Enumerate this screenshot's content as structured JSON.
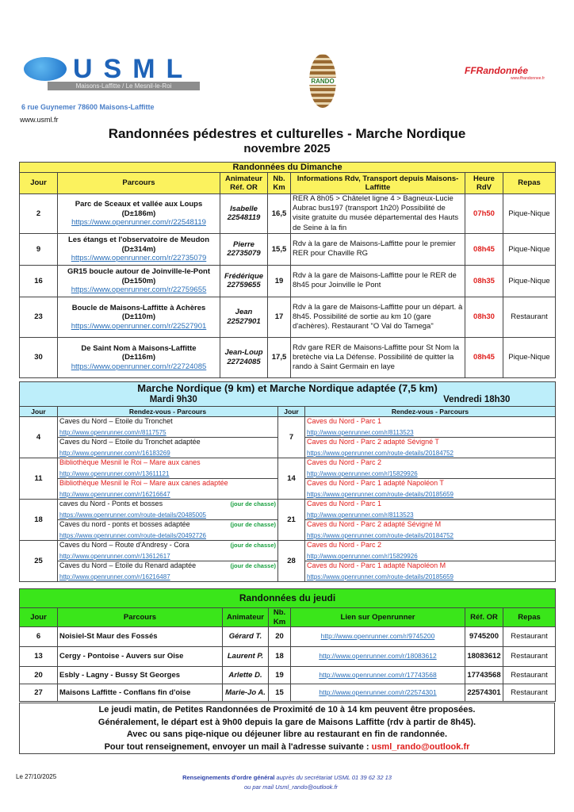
{
  "header": {
    "usml_logo": "USML",
    "usml_subtitle": "Maisons-Laffitte / Le Mesnil-le-Roi",
    "rando_logo": "RANDO",
    "ffr_logo": "FFRandonnée",
    "ffr_url": "www.ffrandonnee.fr",
    "address": "6 rue Guynemer 78600 Maisons-Laffitte",
    "website": "www.usml.fr",
    "title": "Randonnées pédestres et culturelles - Marche Nordique",
    "subtitle": "novembre 2025"
  },
  "colors": {
    "sunday": "#fbf25e",
    "nordic": "#bdeefa",
    "thursday": "#3ae61a",
    "accent_red": "#e0201e",
    "link": "#2a6fb8"
  },
  "sunday": {
    "title": "Randonnées du Dimanche",
    "columns": [
      "Jour",
      "Parcours",
      "Animateur Réf. OR",
      "Nb. Km",
      "Informations Rdv, Transport depuis Maisons-Laffitte",
      "Heure RdV",
      "Repas"
    ],
    "rows": [
      {
        "jour": "2",
        "name": "Parc de Sceaux et vallée aux Loups",
        "denivele": "(D±186m)",
        "link": "https://www.openrunner.com/r/22548119",
        "animateur": "Isabelle",
        "ref": "22548119",
        "km": "16,5",
        "info": "RER A 8h05 > Châtelet ligne 4 > Bagneux-Lucie Aubrac bus197 (transport 1h20) Possibilité de visite gratuite du musée départemental des Hauts de Seine à la fin",
        "heure": "07h50",
        "repas": "Pique-Nique"
      },
      {
        "jour": "9",
        "name": "Les étangs et l'observatoire de Meudon",
        "denivele": "(D±314m)",
        "link": "https://www.openrunner.com/r/22735079",
        "animateur": "Pierre",
        "ref": "22735079",
        "km": "15,5",
        "info": "Rdv à la gare de Maisons-Laffitte pour le premier RER pour Chaville RG",
        "heure": "08h45",
        "repas": "Pique-Nique"
      },
      {
        "jour": "16",
        "name": "GR15 boucle autour de Joinville-le-Pont",
        "denivele": "(D±150m)",
        "link": "https://www.openrunner.com/r/22759655",
        "animateur": "Frédérique",
        "ref": "22759655",
        "km": "19",
        "info": "Rdv à la gare de Maisons-Laffitte pour le RER de 8h45 pour Joinville le Pont",
        "heure": "08h35",
        "repas": "Pique-Nique"
      },
      {
        "jour": "23",
        "name": "Boucle de Maisons-Laffitte à Achères",
        "denivele": "(D±110m)",
        "link": "https://www.openrunner.com/r/22527901",
        "animateur": "Jean",
        "ref": "22527901",
        "km": "17",
        "info": "Rdv à la gare de Maisons-Laffitte pour un départ. à 8h45. Possibilité de sortie au km 10 (gare d'achères). Restaurant \"O Val do Tamega\"",
        "heure": "08h30",
        "repas": "Restaurant"
      },
      {
        "jour": "30",
        "name": "De Saint Nom à Maisons-Laffitte",
        "denivele": "(D±116m)",
        "link": "https://www.openrunner.com/r/22724085",
        "animateur": "Jean-Loup",
        "ref": "22724085",
        "km": "17,5",
        "info": "Rdv gare RER de Maisons-Laffitte pour St Nom la bretèche via La Défense. Possibilité de quitter la rando à Saint Germain en laye",
        "heure": "08h45",
        "repas": "Pique-Nique"
      }
    ]
  },
  "nordic": {
    "title": "Marche Nordique (9 km) et Marche Nordique adaptée (7,5 km)",
    "tuesday": "Mardi 9h30",
    "friday": "Vendredi 18h30",
    "col_jour": "Jour",
    "col_parcours": "Rendez-vous - Parcours",
    "rows": [
      {
        "tue_jour": "4",
        "tue": [
          {
            "name": "Caves du Nord –  Etoile du Tronchet",
            "link": "http://www.openrunner.com/r/8117575",
            "red": false
          },
          {
            "name": "Caves du Nord –  Etoile du Tronchet adaptée",
            "link": "http://www.openrunner.com/r/16183269",
            "red": false
          }
        ],
        "fri_jour": "7",
        "fri": [
          {
            "name": "Caves du Nord - Parc 1",
            "link": "http://www.openrunner.com/r/8113523"
          },
          {
            "name": "Caves du Nord - Parc 2  adapté Sévigné T",
            "link": "https://www.openrunner.com/route-details/20184752"
          }
        ]
      },
      {
        "tue_jour": "11",
        "tue": [
          {
            "name": "Bibliothèque Mesnil le Roi – Mare aux canes",
            "link": "http://www.openrunner.com/r/13611121",
            "red": true
          },
          {
            "name": "Bibliothèque Mesnil le Roi – Mare aux canes adaptée",
            "link": "http://www.openrunner.com/r/16216647",
            "red": true
          }
        ],
        "fri_jour": "14",
        "fri": [
          {
            "name": "Caves du Nord - Parc 2",
            "link": "http://www.openrunner.com/r/15829926"
          },
          {
            "name": "Caves du Nord - Parc 1  adapté Napoléon T",
            "link": "https://www.openrunner.com/route-details/20185659"
          }
        ]
      },
      {
        "tue_jour": "18",
        "tue": [
          {
            "name": "caves du Nord - Ponts et bosses",
            "note": "(jour de chasse)",
            "link": "https://www.openrunner.com/route-details/20485005",
            "red": false
          },
          {
            "name": "Caves du nord - ponts et bosses adaptée",
            "note": "(jour de chasse)",
            "link": "https://www.openrunner.com/route-details/20492726",
            "red": false
          }
        ],
        "fri_jour": "21",
        "fri": [
          {
            "name": "Caves du Nord - Parc 1",
            "link": "http://www.openrunner.com/r/8113523"
          },
          {
            "name": "Caves du Nord - Parc 2 adapté Sévigné M",
            "link": "https://www.openrunner.com/route-details/20184752"
          }
        ]
      },
      {
        "tue_jour": "25",
        "tue": [
          {
            "name": "Caves du Nord – Route d'Andresy - Cora",
            "note": "(jour de chasse)",
            "link": "http://www.openrunner.com/r/13612617",
            "red": false
          },
          {
            "name": "Caves du Nord – Etoile du Renard adaptée",
            "note": "(jour de chasse)",
            "link": "http://www.openrunner.com/r/16216487",
            "red": false
          }
        ],
        "fri_jour": "28",
        "fri": [
          {
            "name": "Caves du Nord - Parc 2",
            "link": "http://www.openrunner.com/r/15829926"
          },
          {
            "name": "Caves du Nord - Parc 1  adapté Napoléon M",
            "link": "https://www.openrunner.com/route-details/20185659"
          }
        ]
      }
    ]
  },
  "thursday": {
    "title": "Randonnées du jeudi",
    "columns": [
      "Jour",
      "Parcours",
      "Animateur",
      "Nb. Km",
      "Lien sur Openrunner",
      "Réf. OR",
      "Repas"
    ],
    "rows": [
      {
        "jour": "6",
        "name": "Noisiel-St Maur des Fossés",
        "animateur": "Gérard T.",
        "km": "20",
        "link": "http://www.openrunner.com/r/9745200",
        "ref": "9745200",
        "repas": "Restaurant"
      },
      {
        "jour": "13",
        "name": "Cergy - Pontoise - Auvers sur Oise",
        "animateur": "Laurent P.",
        "km": "18",
        "link": "http://www.openrunner.com/r/18083612",
        "ref": "18083612",
        "repas": "Restaurant"
      },
      {
        "jour": "20",
        "name": "Esbly - Lagny - Bussy St Georges",
        "animateur": "Arlette D.",
        "km": "19",
        "link": "http://www.openrunner.com/r/17743568",
        "ref": "17743568",
        "repas": "Restaurant"
      },
      {
        "jour": "27",
        "name": "Maisons Laffitte - Conflans fin d'oise",
        "animateur": "Marie-Jo A.",
        "km": "15",
        "link": "http://www.openrunner.com/r/22574301",
        "ref": "22574301",
        "repas": "Restaurant"
      }
    ]
  },
  "info": {
    "line1": "Le jeudi matin, de Petites Randonnées de Proximité de 10 à 14 km peuvent être proposées.",
    "line2": "Généralement, le départ est à 9h00 depuis la gare de Maisons Laffitte (rdv à partir de 8h45).",
    "line3": "Avec ou sans piqe-nique ou déjeuner libre au restaurant en fin de randonnée.",
    "line4": "Pour tout renseignement, envoyer un mail à l'adresse suivante : ",
    "email": "usml_rando@outlook.fr"
  },
  "footer": {
    "date": "Le 27/10/2025",
    "general_label": "Renseignements d'ordre général",
    "general_text": " auprès du secrétariat USML 01 39 62 32 13",
    "mail_text": "ou par mail Usml_rando@outlook.fr"
  }
}
